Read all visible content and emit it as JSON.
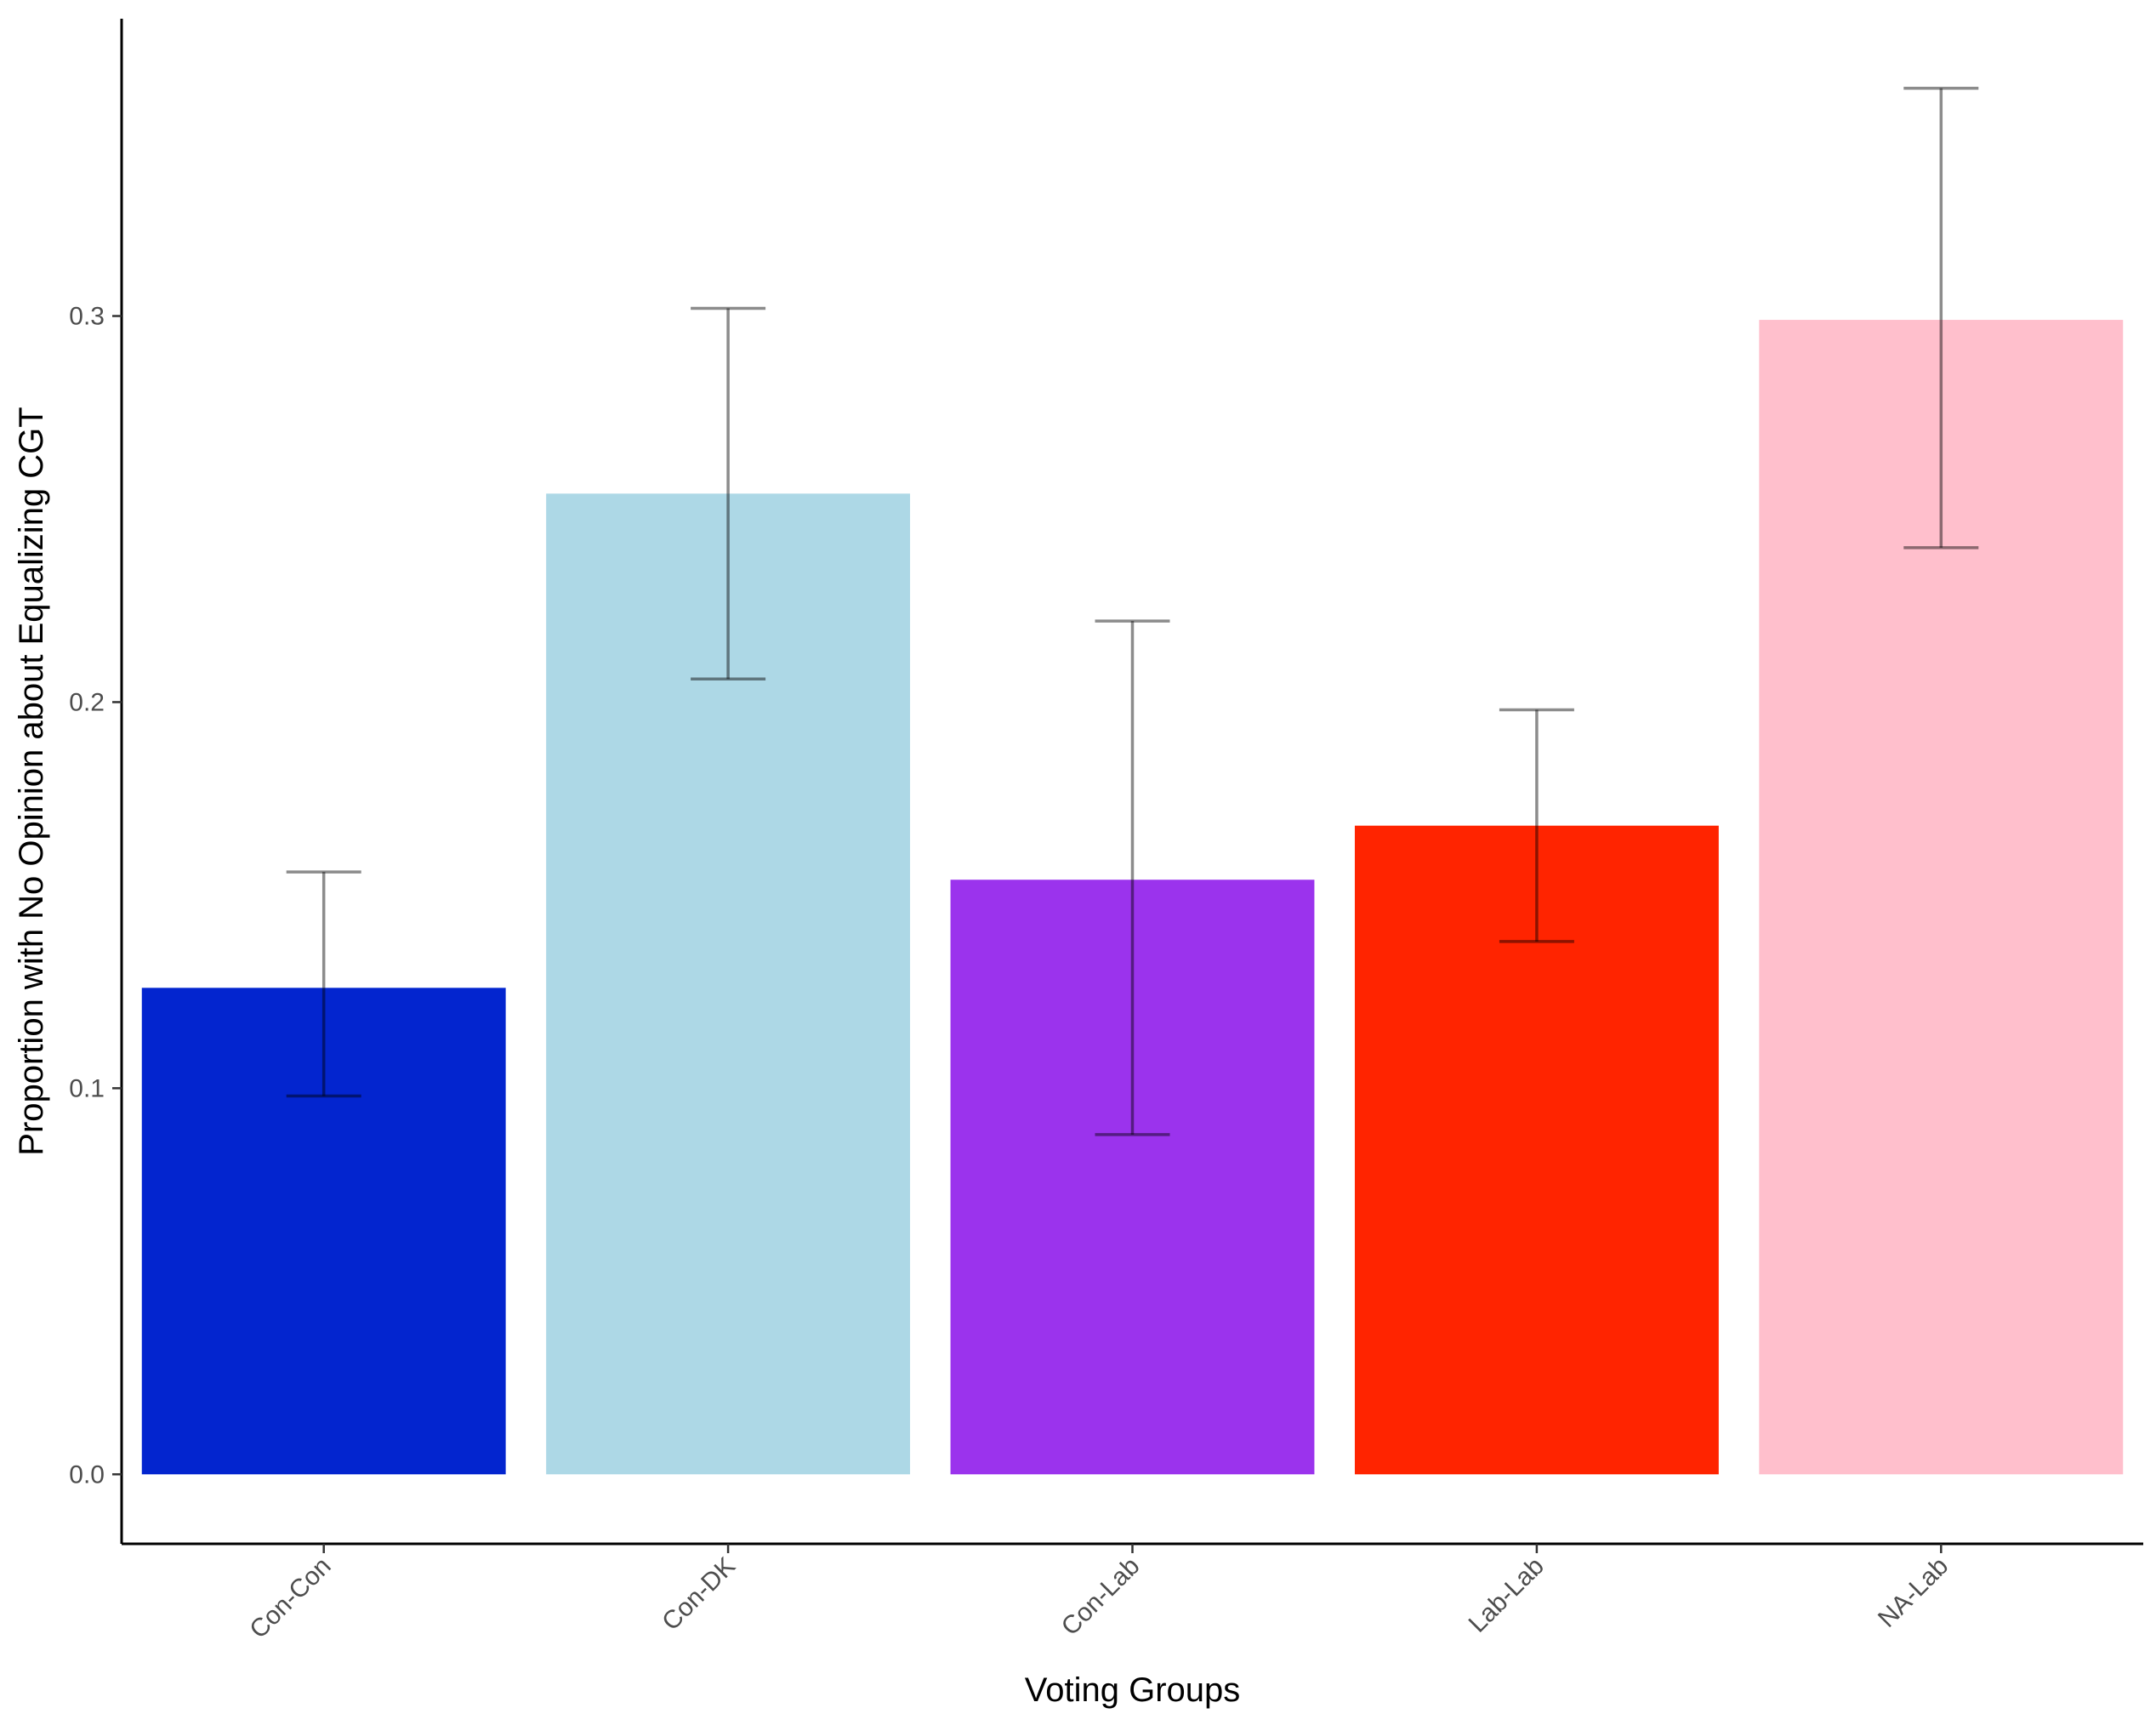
{
  "chart_data": {
    "type": "bar",
    "title": "",
    "xlabel": "Voting Groups",
    "ylabel": "Proportion with No Opinion about Equalizing CGT",
    "categories": [
      "Con-Con",
      "Con-DK",
      "Con-Lab",
      "Lab-Lab",
      "NA-Lab"
    ],
    "values": [
      0.126,
      0.254,
      0.154,
      0.168,
      0.299
    ],
    "error_lower": [
      0.098,
      0.206,
      0.088,
      0.138,
      0.24
    ],
    "error_upper": [
      0.156,
      0.302,
      0.221,
      0.198,
      0.359
    ],
    "colors": [
      "#0325CF",
      "#ADD8E6",
      "#9B33ED",
      "#FF2400",
      "#FFBFCC"
    ],
    "yticks": [
      0.0,
      0.1,
      0.2,
      0.3
    ],
    "ytick_labels": [
      "0.0",
      "0.1",
      "0.2",
      "0.3"
    ],
    "ylim": [
      -0.018,
      0.377
    ],
    "grid": false,
    "legend": "none"
  }
}
